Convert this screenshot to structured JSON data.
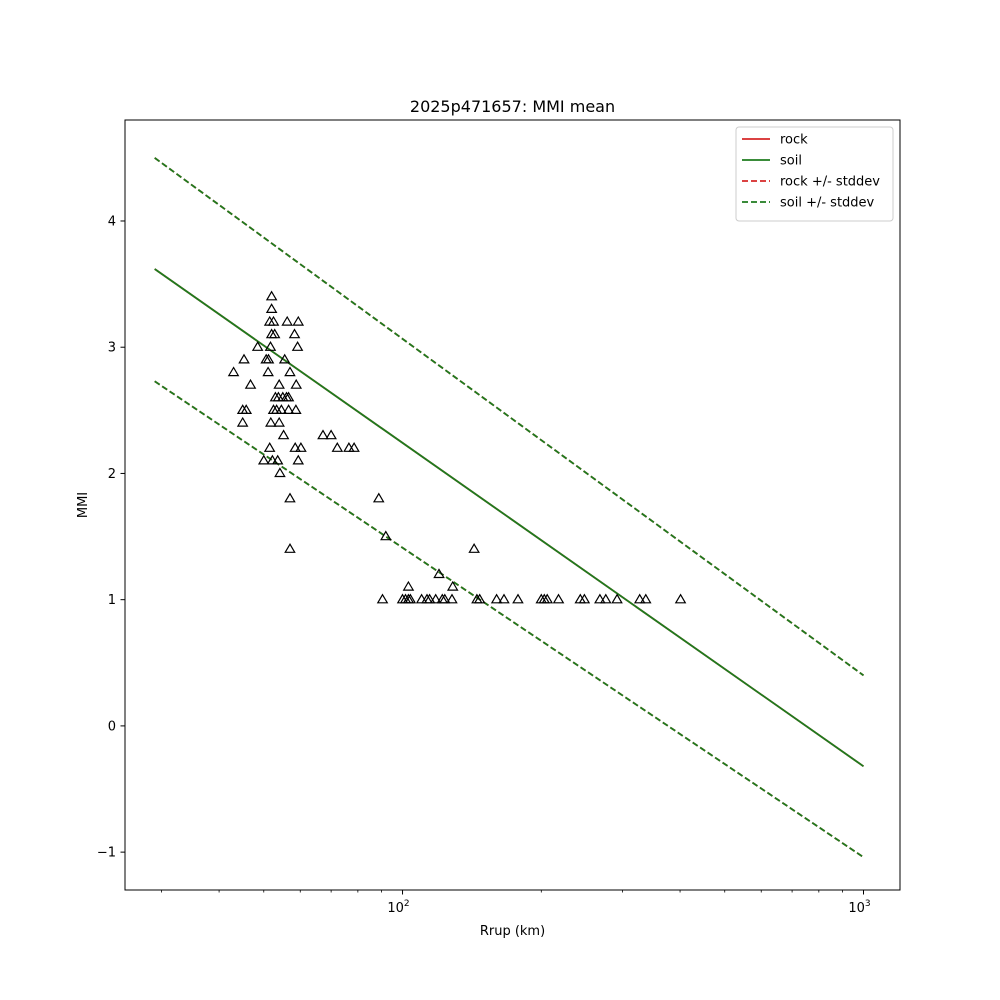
{
  "chart_data": {
    "type": "scatter",
    "title": "2025p471657: MMI mean",
    "xlabel": "Rrup (km)",
    "ylabel": "MMI",
    "xscale": "log",
    "xlim": [
      25,
      1200
    ],
    "ylim": [
      -1.3,
      4.8
    ],
    "x_ticks": [
      {
        "value": 100,
        "base": "10",
        "exp": "2"
      },
      {
        "value": 1000,
        "base": "10",
        "exp": "3"
      }
    ],
    "y_ticks": [
      {
        "value": -1,
        "label": "−1"
      },
      {
        "value": 0,
        "label": "0"
      },
      {
        "value": 1,
        "label": "1"
      },
      {
        "value": 2,
        "label": "2"
      },
      {
        "value": 3,
        "label": "3"
      },
      {
        "value": 4,
        "label": "4"
      }
    ],
    "grid": false,
    "legend_position": "top-right",
    "lines": [
      {
        "name": "rock",
        "color": "#d62728",
        "style": "solid",
        "x": [
          29,
          1000
        ],
        "y": [
          3.62,
          -0.32
        ]
      },
      {
        "name": "soil",
        "color": "#1e7b1e",
        "style": "solid",
        "x": [
          29,
          1000
        ],
        "y": [
          3.62,
          -0.32
        ]
      },
      {
        "name": "rock +/- stddev",
        "color": "#d62728",
        "style": "dashed",
        "x": [
          29,
          1000
        ],
        "y": [
          4.5,
          0.4
        ]
      },
      {
        "name": "rock +/- stddev",
        "color": "#d62728",
        "style": "dashed",
        "x": [
          29,
          1000
        ],
        "y": [
          2.73,
          -1.04
        ]
      },
      {
        "name": "soil +/- stddev",
        "color": "#1e7b1e",
        "style": "dashed",
        "x": [
          29,
          1000
        ],
        "y": [
          4.5,
          0.4
        ]
      },
      {
        "name": "soil +/- stddev",
        "color": "#1e7b1e",
        "style": "dashed",
        "x": [
          29,
          1000
        ],
        "y": [
          2.73,
          -1.04
        ]
      }
    ],
    "legend": [
      {
        "label": "rock",
        "color": "#d62728",
        "style": "solid"
      },
      {
        "label": "soil",
        "color": "#1e7b1e",
        "style": "solid"
      },
      {
        "label": "rock +/- stddev",
        "color": "#d62728",
        "style": "dashed"
      },
      {
        "label": "soil +/- stddev",
        "color": "#1e7b1e",
        "style": "dashed"
      }
    ],
    "points": [
      {
        "x": 43.0,
        "y": 2.8
      },
      {
        "x": 45.0,
        "y": 2.5
      },
      {
        "x": 45.0,
        "y": 2.4
      },
      {
        "x": 45.3,
        "y": 2.9
      },
      {
        "x": 45.8,
        "y": 2.5
      },
      {
        "x": 46.8,
        "y": 2.7
      },
      {
        "x": 48.5,
        "y": 3.0
      },
      {
        "x": 50.0,
        "y": 2.1
      },
      {
        "x": 50.6,
        "y": 2.9
      },
      {
        "x": 51.1,
        "y": 2.8
      },
      {
        "x": 51.2,
        "y": 2.9
      },
      {
        "x": 51.5,
        "y": 3.2
      },
      {
        "x": 51.5,
        "y": 2.2
      },
      {
        "x": 51.7,
        "y": 3.0
      },
      {
        "x": 51.8,
        "y": 2.4
      },
      {
        "x": 52.0,
        "y": 3.4
      },
      {
        "x": 52.0,
        "y": 3.3
      },
      {
        "x": 52.0,
        "y": 3.1
      },
      {
        "x": 52.2,
        "y": 2.1
      },
      {
        "x": 52.5,
        "y": 3.2
      },
      {
        "x": 52.5,
        "y": 2.5
      },
      {
        "x": 52.8,
        "y": 3.1
      },
      {
        "x": 53.0,
        "y": 2.6
      },
      {
        "x": 53.3,
        "y": 2.5
      },
      {
        "x": 53.6,
        "y": 2.1
      },
      {
        "x": 53.8,
        "y": 2.6
      },
      {
        "x": 54.0,
        "y": 2.4
      },
      {
        "x": 54.0,
        "y": 2.7
      },
      {
        "x": 54.2,
        "y": 2.0
      },
      {
        "x": 54.6,
        "y": 2.5
      },
      {
        "x": 55.0,
        "y": 2.6
      },
      {
        "x": 55.2,
        "y": 2.3
      },
      {
        "x": 55.5,
        "y": 2.9
      },
      {
        "x": 56.0,
        "y": 2.6
      },
      {
        "x": 56.2,
        "y": 3.2
      },
      {
        "x": 56.6,
        "y": 2.5
      },
      {
        "x": 56.6,
        "y": 2.6
      },
      {
        "x": 57.0,
        "y": 2.8
      },
      {
        "x": 57.0,
        "y": 1.8
      },
      {
        "x": 57.0,
        "y": 1.4
      },
      {
        "x": 58.3,
        "y": 3.1
      },
      {
        "x": 58.5,
        "y": 2.2
      },
      {
        "x": 58.7,
        "y": 2.5
      },
      {
        "x": 58.8,
        "y": 2.7
      },
      {
        "x": 59.2,
        "y": 3.0
      },
      {
        "x": 59.4,
        "y": 3.2
      },
      {
        "x": 59.4,
        "y": 2.1
      },
      {
        "x": 60.2,
        "y": 2.2
      },
      {
        "x": 67.2,
        "y": 2.3
      },
      {
        "x": 70.0,
        "y": 2.3
      },
      {
        "x": 72.2,
        "y": 2.2
      },
      {
        "x": 76.5,
        "y": 2.2
      },
      {
        "x": 78.5,
        "y": 2.2
      },
      {
        "x": 88.8,
        "y": 1.8
      },
      {
        "x": 90.5,
        "y": 1.0
      },
      {
        "x": 92.0,
        "y": 1.5
      },
      {
        "x": 100.0,
        "y": 1.0
      },
      {
        "x": 101.5,
        "y": 1.0
      },
      {
        "x": 103.0,
        "y": 1.1
      },
      {
        "x": 103.0,
        "y": 1.0
      },
      {
        "x": 104.0,
        "y": 1.0
      },
      {
        "x": 110.0,
        "y": 1.0
      },
      {
        "x": 113.0,
        "y": 1.0
      },
      {
        "x": 114.5,
        "y": 1.0
      },
      {
        "x": 118.0,
        "y": 1.0
      },
      {
        "x": 120.0,
        "y": 1.2
      },
      {
        "x": 122.0,
        "y": 1.0
      },
      {
        "x": 123.5,
        "y": 1.0
      },
      {
        "x": 128.0,
        "y": 1.0
      },
      {
        "x": 128.5,
        "y": 1.1
      },
      {
        "x": 143.0,
        "y": 1.4
      },
      {
        "x": 145.0,
        "y": 1.0
      },
      {
        "x": 147.0,
        "y": 1.0
      },
      {
        "x": 160.0,
        "y": 1.0
      },
      {
        "x": 166.0,
        "y": 1.0
      },
      {
        "x": 178.0,
        "y": 1.0
      },
      {
        "x": 200.0,
        "y": 1.0
      },
      {
        "x": 203.0,
        "y": 1.0
      },
      {
        "x": 206.0,
        "y": 1.0
      },
      {
        "x": 218.0,
        "y": 1.0
      },
      {
        "x": 243.0,
        "y": 1.0
      },
      {
        "x": 248.0,
        "y": 1.0
      },
      {
        "x": 268.0,
        "y": 1.0
      },
      {
        "x": 276.0,
        "y": 1.0
      },
      {
        "x": 292.0,
        "y": 1.0
      },
      {
        "x": 327.0,
        "y": 1.0
      },
      {
        "x": 337.0,
        "y": 1.0
      },
      {
        "x": 401.0,
        "y": 1.0
      }
    ]
  }
}
